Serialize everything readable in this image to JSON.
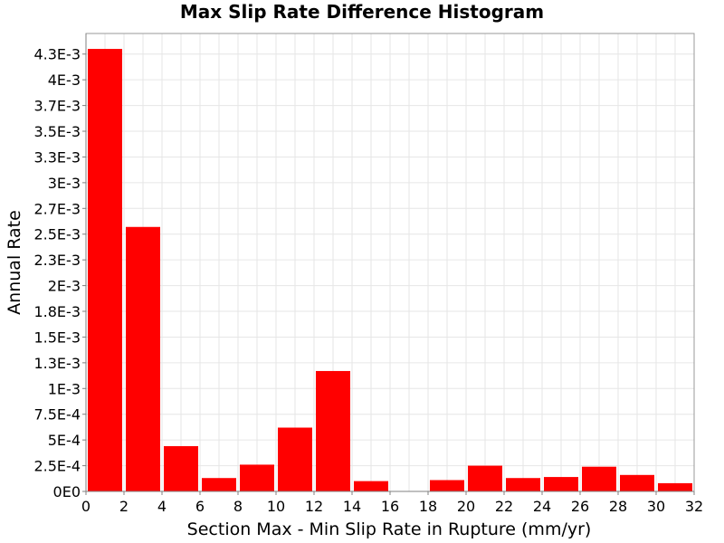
{
  "chart_data": {
    "type": "bar",
    "title": "Max Slip Rate Difference Histogram",
    "xlabel": "Section Max - Min Slip Rate in Rupture (mm/yr)",
    "ylabel": "Annual Rate",
    "xlim": [
      0,
      32
    ],
    "ylim": [
      0,
      0.00445
    ],
    "bin_width": 2,
    "x": [
      1,
      3,
      5,
      7,
      9,
      11,
      13,
      15,
      17,
      19,
      21,
      23,
      25,
      27,
      29,
      31
    ],
    "values": [
      0.0043,
      0.00257,
      0.00044,
      0.00013,
      0.00026,
      0.00062,
      0.00117,
      0.0001,
      0.0,
      0.00011,
      0.00025,
      0.00013,
      0.00014,
      0.00024,
      0.00016,
      8e-05
    ],
    "bar_color": "#ff0000",
    "grid": true,
    "legend": "none",
    "x_ticks": [
      {
        "value": 0,
        "label": "0"
      },
      {
        "value": 2,
        "label": "2"
      },
      {
        "value": 4,
        "label": "4"
      },
      {
        "value": 6,
        "label": "6"
      },
      {
        "value": 8,
        "label": "8"
      },
      {
        "value": 10,
        "label": "10"
      },
      {
        "value": 12,
        "label": "12"
      },
      {
        "value": 14,
        "label": "14"
      },
      {
        "value": 16,
        "label": "16"
      },
      {
        "value": 18,
        "label": "18"
      },
      {
        "value": 20,
        "label": "20"
      },
      {
        "value": 22,
        "label": "22"
      },
      {
        "value": 24,
        "label": "24"
      },
      {
        "value": 26,
        "label": "26"
      },
      {
        "value": 28,
        "label": "28"
      },
      {
        "value": 30,
        "label": "30"
      },
      {
        "value": 32,
        "label": "32"
      }
    ],
    "y_ticks": [
      {
        "value": 0,
        "label": "0E0"
      },
      {
        "value": 0.00025,
        "label": "2.5E-4"
      },
      {
        "value": 0.0005,
        "label": "5E-4"
      },
      {
        "value": 0.00075,
        "label": "7.5E-4"
      },
      {
        "value": 0.001,
        "label": "1E-3"
      },
      {
        "value": 0.00125,
        "label": "1.3E-3"
      },
      {
        "value": 0.0015,
        "label": "1.5E-3"
      },
      {
        "value": 0.00175,
        "label": "1.8E-3"
      },
      {
        "value": 0.002,
        "label": "2E-3"
      },
      {
        "value": 0.00225,
        "label": "2.3E-3"
      },
      {
        "value": 0.0025,
        "label": "2.5E-3"
      },
      {
        "value": 0.00275,
        "label": "2.7E-3"
      },
      {
        "value": 0.003,
        "label": "3E-3"
      },
      {
        "value": 0.00325,
        "label": "3.3E-3"
      },
      {
        "value": 0.0035,
        "label": "3.5E-3"
      },
      {
        "value": 0.00375,
        "label": "3.7E-3"
      },
      {
        "value": 0.004,
        "label": "4E-3"
      },
      {
        "value": 0.00425,
        "label": "4.3E-3"
      }
    ]
  }
}
